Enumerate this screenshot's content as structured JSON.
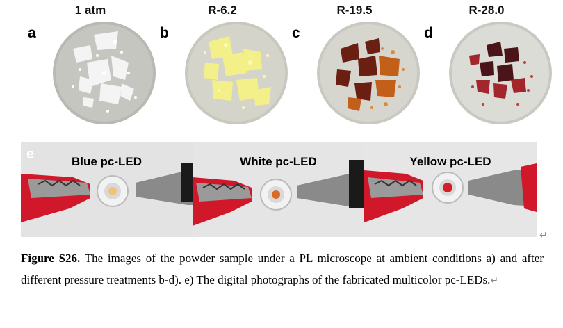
{
  "samples": [
    {
      "letter": "a",
      "condition": "1 atm"
    },
    {
      "letter": "b",
      "condition": "R-6.2"
    },
    {
      "letter": "c",
      "condition": "R-19.5"
    },
    {
      "letter": "d",
      "condition": "R-28.0"
    }
  ],
  "led_panel": {
    "letter": "e",
    "labels": [
      "Blue pc-LED",
      "White pc-LED",
      "Yellow pc-LED"
    ]
  },
  "caption": {
    "figure_label": "Figure S26.",
    "text": " The images of the powder sample under a PL microscope at ambient conditions a) and after different pressure treatments b-d). e) The digital photographs of the fabricated multicolor pc-LEDs."
  },
  "colors": {
    "sample_a": "#e8e8e8",
    "sample_b": "#f3f08a",
    "sample_c": "#b8561a",
    "sample_d": "#8e1f26",
    "clip_red": "#d1182b",
    "led_blue_chip": "#f1c27a",
    "led_white_chip": "#d86a2a",
    "led_yellow_chip": "#d2202a"
  }
}
